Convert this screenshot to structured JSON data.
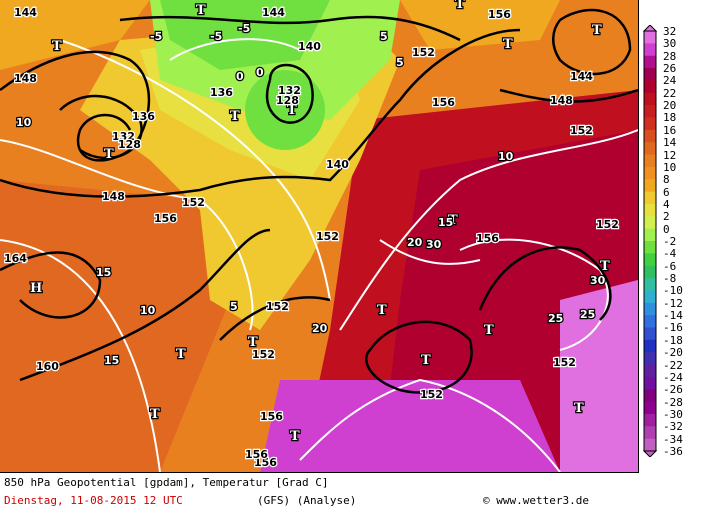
{
  "caption": {
    "line1": "850 hPa Geopotential [gpdam], Temperatur [Grad C]",
    "date": "Dienstag, 11-08-2015  12 UTC",
    "model": "(GFS)  (Analyse)",
    "credit": "© www.wetter3.de"
  },
  "legend": {
    "labels": [
      "32",
      "30",
      "28",
      "26",
      "24",
      "22",
      "20",
      "18",
      "16",
      "14",
      "12",
      "10",
      "8",
      "6",
      "4",
      "2",
      "0",
      "-2",
      "-4",
      "-6",
      "-8",
      "-10",
      "-12",
      "-14",
      "-16",
      "-18",
      "-20",
      "-22",
      "-24",
      "-26",
      "-28",
      "-30",
      "-32",
      "-34",
      "-36"
    ],
    "colors": [
      "#e070e0",
      "#d040d0",
      "#b01090",
      "#a00050",
      "#b00030",
      "#c01020",
      "#c82020",
      "#d03020",
      "#d85020",
      "#e06820",
      "#e88020",
      "#f09020",
      "#f0a820",
      "#f0c830",
      "#e8e040",
      "#d0f050",
      "#a0f050",
      "#70e040",
      "#40d040",
      "#30c060",
      "#30c0a0",
      "#30b0d0",
      "#3090e0",
      "#3070e0",
      "#3050d0",
      "#2030c0",
      "#4030b0",
      "#6020a0",
      "#7010a0",
      "#800080",
      "#900090",
      "#a020a0",
      "#b040b0",
      "#c060c0"
    ]
  },
  "map": {
    "pressure_systems": {
      "lows": [
        "T",
        "T",
        "T",
        "T",
        "T",
        "T",
        "T",
        "T",
        "T",
        "T",
        "T",
        "T",
        "T",
        "T",
        "T",
        "T",
        "T",
        "T"
      ],
      "highs": [
        "H"
      ]
    },
    "geopotential_labels": [
      "144",
      "144",
      "144",
      "140",
      "136",
      "132",
      "128",
      "152",
      "148",
      "156",
      "160",
      "164",
      "148",
      "152",
      "156",
      "132",
      "128",
      "152",
      "152",
      "152",
      "156",
      "140",
      "148",
      "152",
      "156",
      "156",
      "136",
      "152",
      "152",
      "152",
      "156",
      "156"
    ],
    "temperature_labels": [
      "5",
      "-5",
      "-5",
      "0",
      "5",
      "10",
      "15",
      "20",
      "25",
      "30",
      "15",
      "10",
      "5",
      "-5",
      "0",
      "10",
      "20",
      "15",
      "25",
      "30"
    ]
  }
}
